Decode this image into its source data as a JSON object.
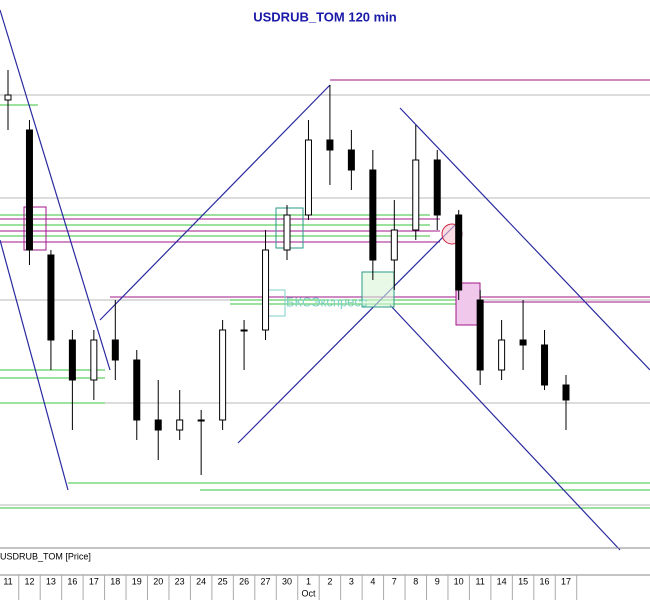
{
  "chart_data": {
    "type": "candlestick",
    "title": "USDRUB_TOM 120 min",
    "watermark": "БКСЭкспресс",
    "series_label": "USDRUB_TOM [Price]",
    "categories": [
      "11",
      "12",
      "13",
      "16",
      "17",
      "18",
      "19",
      "20",
      "23",
      "24",
      "25",
      "26",
      "27",
      "30",
      "1",
      "2",
      "3",
      "4",
      "7",
      "8",
      "9",
      "10",
      "11",
      "14",
      "15",
      "16",
      "17"
    ],
    "month_label": "Oct",
    "month_label_index": 14,
    "open": [
      450,
      420,
      295,
      210,
      170,
      210,
      190,
      130,
      120,
      130,
      130,
      220,
      220,
      300,
      335,
      410,
      400,
      380,
      290,
      320,
      390,
      335,
      250,
      180,
      210,
      205,
      165
    ],
    "high": [
      480,
      430,
      300,
      220,
      220,
      250,
      200,
      170,
      160,
      140,
      230,
      230,
      320,
      345,
      430,
      465,
      420,
      400,
      350,
      425,
      400,
      340,
      260,
      230,
      250,
      220,
      175
    ],
    "low": [
      420,
      285,
      180,
      120,
      150,
      170,
      110,
      90,
      110,
      75,
      120,
      180,
      210,
      290,
      330,
      365,
      360,
      270,
      260,
      310,
      320,
      250,
      165,
      170,
      180,
      160,
      120
    ],
    "close": [
      455,
      300,
      210,
      170,
      210,
      190,
      130,
      120,
      130,
      130,
      220,
      220,
      300,
      335,
      410,
      400,
      380,
      290,
      320,
      390,
      335,
      260,
      180,
      210,
      205,
      165,
      150
    ],
    "ylim": [
      0,
      500
    ],
    "up_color": "#ffffff",
    "down_color": "#000000"
  }
}
